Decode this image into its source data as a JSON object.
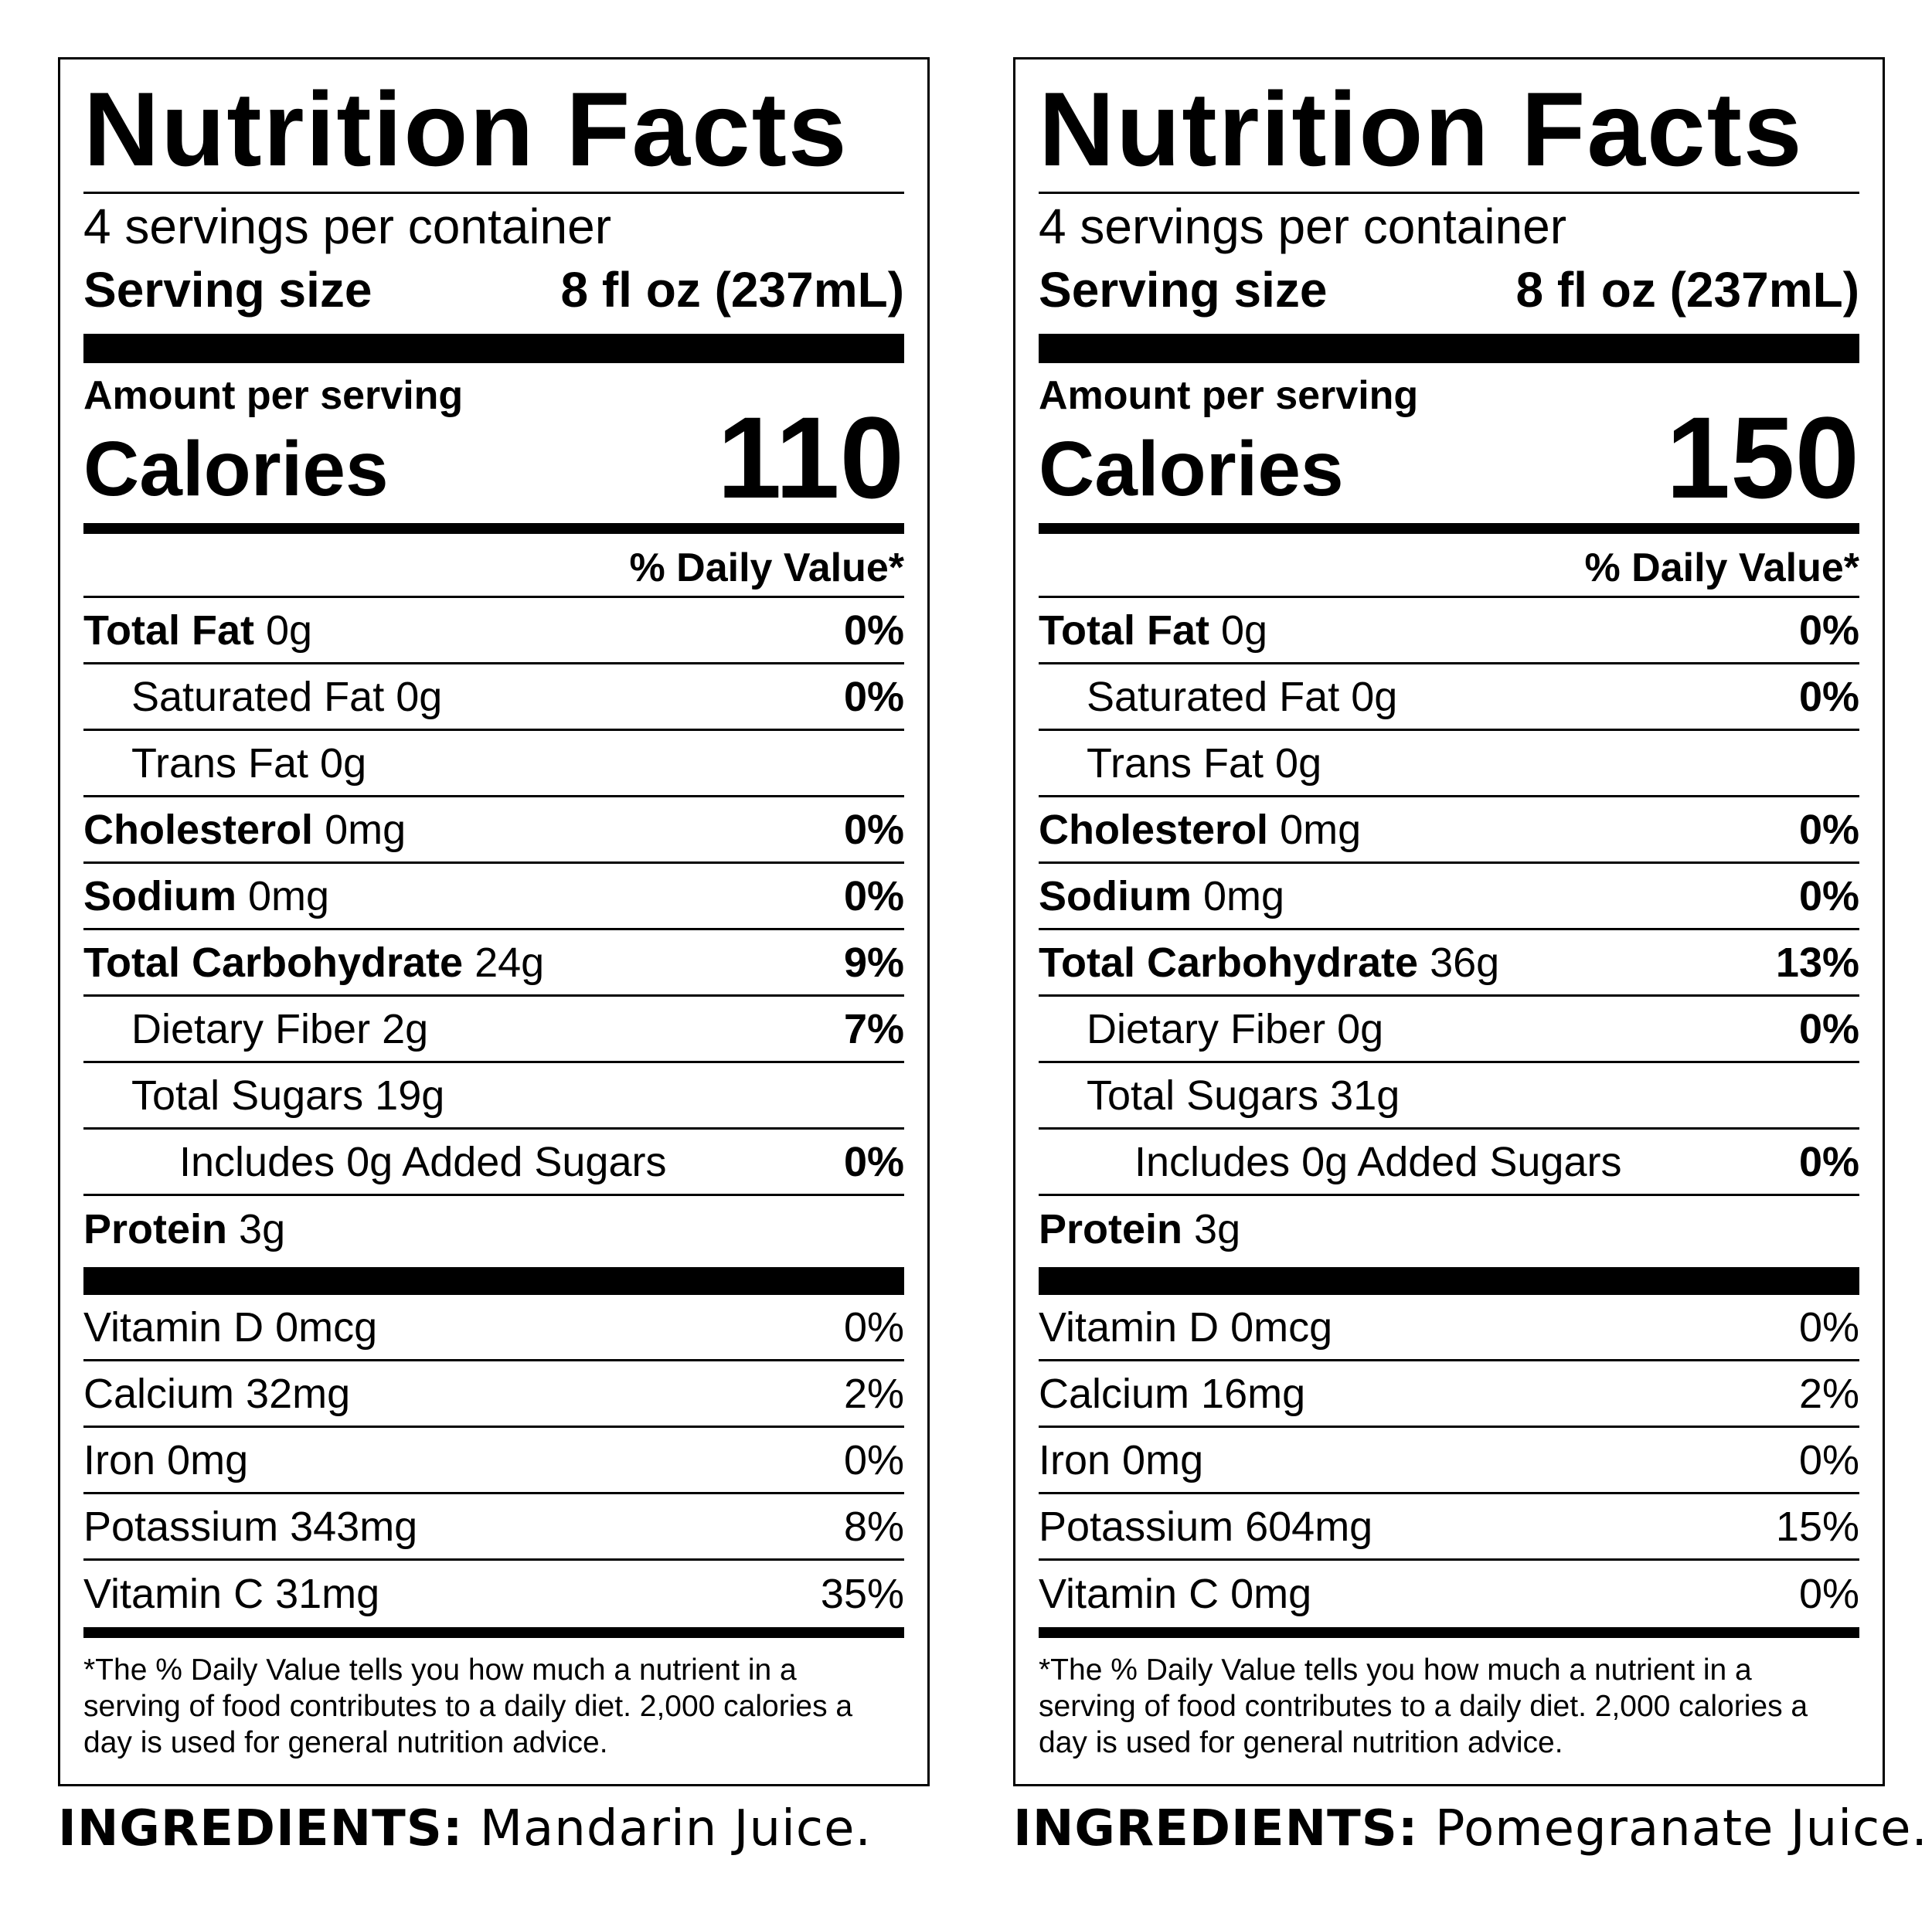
{
  "labels": [
    {
      "title": "Nutrition Facts",
      "servings_per_container": "4 servings per container",
      "serving_size_label": "Serving size",
      "serving_size_value": "8 fl oz (237mL)",
      "amount_per_serving": "Amount per serving",
      "calories_label": "Calories",
      "calories_value": "110",
      "daily_value_header": "% Daily Value*",
      "rows": {
        "total_fat": {
          "label": "Total Fat",
          "amount": "0g",
          "dv": "0%"
        },
        "saturated_fat": {
          "label": "Saturated Fat 0g",
          "dv": "0%"
        },
        "trans_fat": {
          "label": "Trans Fat 0g"
        },
        "cholesterol": {
          "label": "Cholesterol",
          "amount": "0mg",
          "dv": "0%"
        },
        "sodium": {
          "label": "Sodium",
          "amount": "0mg",
          "dv": "0%"
        },
        "total_carbohydrate": {
          "label": "Total Carbohydrate",
          "amount": "24g",
          "dv": "9%"
        },
        "dietary_fiber": {
          "label": "Dietary Fiber 2g",
          "dv": "7%"
        },
        "total_sugars": {
          "label": "Total Sugars 19g"
        },
        "added_sugars": {
          "label": "Includes 0g Added Sugars",
          "dv": "0%"
        },
        "protein": {
          "label": "Protein",
          "amount": "3g"
        }
      },
      "vitamins": [
        {
          "label": "Vitamin D 0mcg",
          "dv": "0%"
        },
        {
          "label": "Calcium 32mg",
          "dv": "2%"
        },
        {
          "label": "Iron 0mg",
          "dv": "0%"
        },
        {
          "label": "Potassium 343mg",
          "dv": "8%"
        },
        {
          "label": "Vitamin C 31mg",
          "dv": "35%"
        }
      ],
      "footnote_lines": [
        "*The % Daily Value tells you how much a nutrient in a",
        "serving of food contributes to a daily diet. 2,000 calories a",
        "day is used for general nutrition advice."
      ],
      "ingredients_label": "INGREDIENTS:",
      "ingredients_text": "Mandarin Juice."
    },
    {
      "title": "Nutrition Facts",
      "servings_per_container": "4 servings per container",
      "serving_size_label": "Serving size",
      "serving_size_value": "8 fl oz (237mL)",
      "amount_per_serving": "Amount per serving",
      "calories_label": "Calories",
      "calories_value": "150",
      "daily_value_header": "% Daily Value*",
      "rows": {
        "total_fat": {
          "label": "Total Fat",
          "amount": "0g",
          "dv": "0%"
        },
        "saturated_fat": {
          "label": "Saturated Fat 0g",
          "dv": "0%"
        },
        "trans_fat": {
          "label": "Trans Fat 0g"
        },
        "cholesterol": {
          "label": "Cholesterol",
          "amount": "0mg",
          "dv": "0%"
        },
        "sodium": {
          "label": "Sodium",
          "amount": "0mg",
          "dv": "0%"
        },
        "total_carbohydrate": {
          "label": "Total Carbohydrate",
          "amount": "36g",
          "dv": "13%"
        },
        "dietary_fiber": {
          "label": "Dietary Fiber 0g",
          "dv": "0%"
        },
        "total_sugars": {
          "label": "Total Sugars 31g"
        },
        "added_sugars": {
          "label": "Includes 0g Added Sugars",
          "dv": "0%"
        },
        "protein": {
          "label": "Protein",
          "amount": "3g"
        }
      },
      "vitamins": [
        {
          "label": "Vitamin D 0mcg",
          "dv": "0%"
        },
        {
          "label": "Calcium 16mg",
          "dv": "2%"
        },
        {
          "label": "Iron 0mg",
          "dv": "0%"
        },
        {
          "label": "Potassium 604mg",
          "dv": "15%"
        },
        {
          "label": "Vitamin C 0mg",
          "dv": "0%"
        }
      ],
      "footnote_lines": [
        "*The % Daily Value tells you how much a nutrient in a",
        "serving of food contributes to a daily diet. 2,000 calories a",
        "day is used for general nutrition advice."
      ],
      "ingredients_label": "INGREDIENTS:",
      "ingredients_text": "Pomegranate Juice."
    }
  ]
}
